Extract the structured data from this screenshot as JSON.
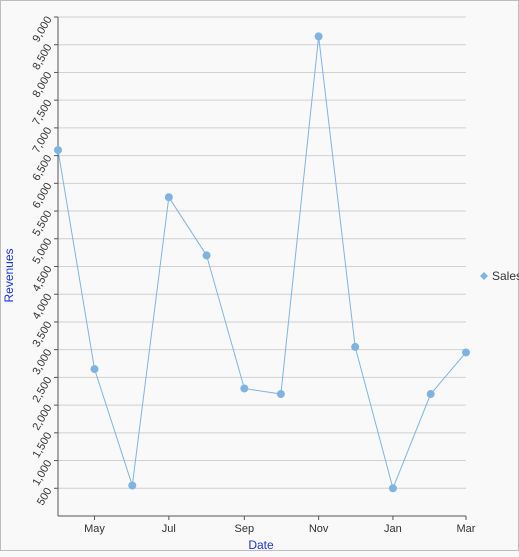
{
  "chart_data": {
    "type": "line",
    "xlabel": "Date",
    "ylabel": "Revenues",
    "ylim": [
      0,
      9000
    ],
    "y_ticks": [
      "500",
      "1,000",
      "1,500",
      "2,000",
      "2,500",
      "3,000",
      "3,500",
      "4,000",
      "4,500",
      "5,000",
      "5,500",
      "6,000",
      "6,500",
      "7,000",
      "7,500",
      "8,000",
      "8,500",
      "9,000"
    ],
    "y_tick_values": [
      500,
      1000,
      1500,
      2000,
      2500,
      3000,
      3500,
      4000,
      4500,
      5000,
      5500,
      6000,
      6500,
      7000,
      7500,
      8000,
      8500,
      9000
    ],
    "x_ticks": [
      "May",
      "Jul",
      "Sep",
      "Nov",
      "Jan",
      "Mar"
    ],
    "x_tick_dates": [
      "2019-05-01",
      "2019-07-01",
      "2019-09-01",
      "2019-11-01",
      "2020-01-01",
      "2020-03-01"
    ],
    "x_range": [
      "2019-04-01",
      "2020-03-01"
    ],
    "grid": "horizontal",
    "legend_position": "right",
    "series": [
      {
        "name": "Sales",
        "color": "#7fb4e2",
        "x": [
          "2019-04-01",
          "2019-05-01",
          "2019-06-01",
          "2019-07-01",
          "2019-08-01",
          "2019-09-01",
          "2019-10-01",
          "2019-11-01",
          "2019-12-01",
          "2020-01-01",
          "2020-02-01",
          "2020-03-01"
        ],
        "y": [
          6600,
          2650,
          550,
          5750,
          4700,
          2300,
          2200,
          8650,
          3050,
          500,
          2200,
          2950
        ]
      }
    ]
  }
}
